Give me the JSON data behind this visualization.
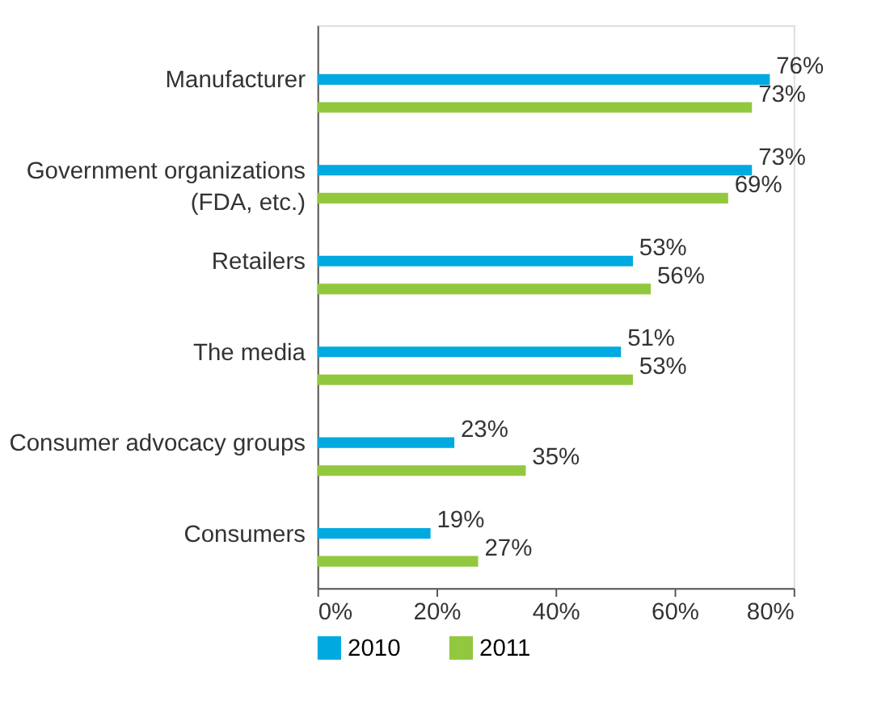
{
  "chart_data": {
    "type": "bar",
    "orientation": "horizontal",
    "categories": [
      "Manufacturer",
      "Government organizations (FDA, etc.)",
      "Retailers",
      "The media",
      "Consumer advocacy groups",
      "Consumers"
    ],
    "series": [
      {
        "name": "2010",
        "color": "#00a9e0",
        "values": [
          76,
          73,
          53,
          51,
          23,
          19
        ],
        "value_labels": [
          "76%",
          "73%",
          "53%",
          "51%",
          "23%",
          "19%"
        ]
      },
      {
        "name": "2011",
        "color": "#92c83e",
        "values": [
          73,
          69,
          56,
          53,
          35,
          27
        ],
        "value_labels": [
          "73%",
          "69%",
          "56%",
          "53%",
          "35%",
          "27%"
        ]
      }
    ],
    "xlim": [
      0,
      80
    ],
    "xticks": [
      {
        "value": 0,
        "label": "0%"
      },
      {
        "value": 20,
        "label": "20%"
      },
      {
        "value": 40,
        "label": "40%"
      },
      {
        "value": 60,
        "label": "60%"
      },
      {
        "value": 80,
        "label": "80%"
      }
    ],
    "grid": false,
    "legend": "bottom left"
  }
}
